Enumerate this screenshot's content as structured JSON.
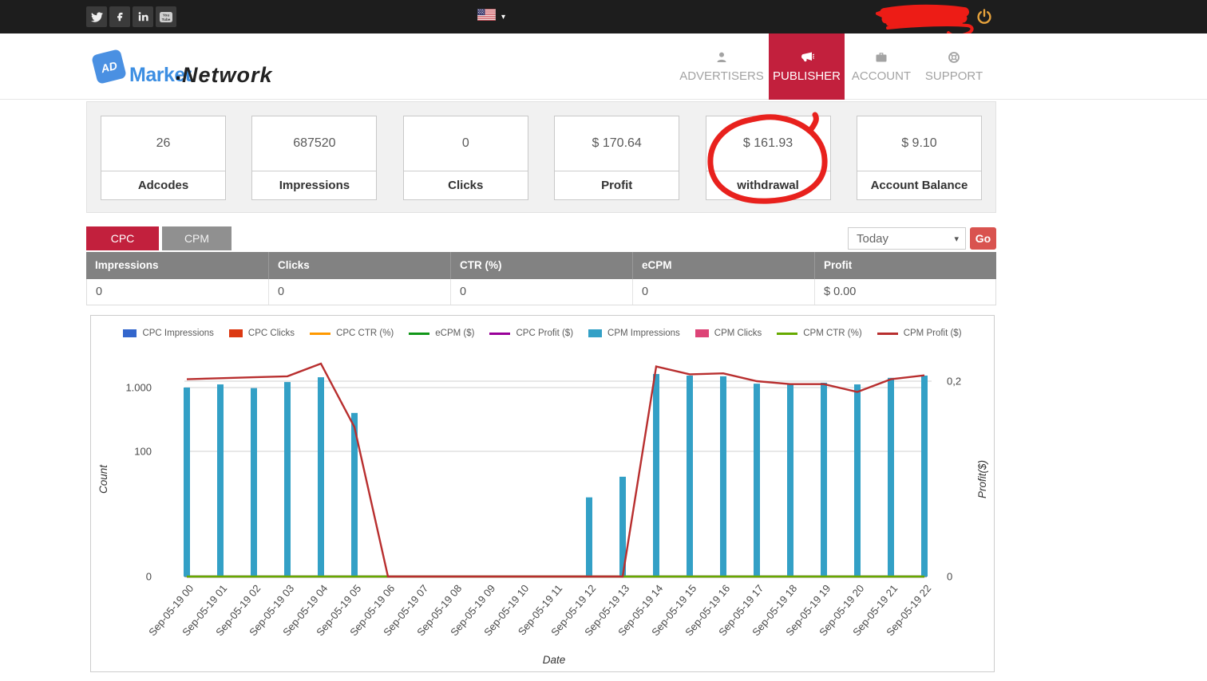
{
  "topbar": {
    "social_icons": [
      "twitter-icon",
      "facebook-icon",
      "linkedin-icon",
      "youtube-icon"
    ],
    "language": {
      "flag_icon": "us-flag-icon"
    },
    "username_redacted": true
  },
  "header": {
    "logo": {
      "badge": "AD",
      "part1": "Market",
      "separator": ".",
      "part2": "Network"
    },
    "nav": [
      {
        "label": "ADVERTISERS",
        "icon": "user-icon",
        "active": false
      },
      {
        "label": "PUBLISHER",
        "icon": "megaphone-icon",
        "active": true
      },
      {
        "label": "ACCOUNT",
        "icon": "briefcase-icon",
        "active": false
      },
      {
        "label": "SUPPORT",
        "icon": "lifering-icon",
        "active": false
      }
    ]
  },
  "stats_cards": [
    {
      "value": "26",
      "label": "Adcodes"
    },
    {
      "value": "687520",
      "label": "Impressions"
    },
    {
      "value": "0",
      "label": "Clicks"
    },
    {
      "value": "$ 170.64",
      "label": "Profit"
    },
    {
      "value": "$ 161.93",
      "label": "withdrawal",
      "annotated": true
    },
    {
      "value": "$ 9.10",
      "label": "Account Balance"
    }
  ],
  "controls": {
    "tabs": [
      {
        "label": "CPC",
        "active": true
      },
      {
        "label": "CPM",
        "active": false
      }
    ],
    "period_select": {
      "value": "Today"
    },
    "go_button": "Go"
  },
  "summary_table": {
    "columns": [
      "Impressions",
      "Clicks",
      "CTR (%)",
      "eCPM",
      "Profit"
    ],
    "rows": [
      [
        "0",
        "0",
        "0",
        "0",
        "$ 0.00"
      ]
    ]
  },
  "annotations": {
    "withdrawal_circle_color": "#e8211d",
    "redaction_color": "#ed1c16"
  },
  "theme": {
    "accent_red": "#c2203d",
    "button_red": "#d9534f",
    "topbar_bg": "#1d1d1d",
    "table_header_bg": "#828282",
    "power_icon_color": "#e6a23c"
  },
  "chart_data": {
    "type": "bar",
    "title": "",
    "xlabel": "Date",
    "ylabel_left": "Count",
    "ylabel_right": "Profit($)",
    "legend_position": "top",
    "grid": true,
    "categories": [
      "Sep-05-19 00",
      "Sep-05-19 01",
      "Sep-05-19 02",
      "Sep-05-19 03",
      "Sep-05-19 04",
      "Sep-05-19 05",
      "Sep-05-19 06",
      "Sep-05-19 07",
      "Sep-05-19 08",
      "Sep-05-19 09",
      "Sep-05-19 10",
      "Sep-05-19 11",
      "Sep-05-19 12",
      "Sep-05-19 13",
      "Sep-05-19 14",
      "Sep-05-19 15",
      "Sep-05-19 16",
      "Sep-05-19 17",
      "Sep-05-19 18",
      "Sep-05-19 19",
      "Sep-05-19 20",
      "Sep-05-19 21",
      "Sep-05-19 22"
    ],
    "y_left_ticks": [
      {
        "label": "1.000",
        "value": 1000
      },
      {
        "label": "100",
        "value": 100
      },
      {
        "label": "0",
        "value": 0
      }
    ],
    "y_right_ticks": [
      {
        "label": "0,2",
        "value": 0.2
      },
      {
        "label": "0",
        "value": 0
      }
    ],
    "series": [
      {
        "name": "CPC Impressions",
        "style": "bar",
        "color": "#3366cc",
        "axis": "count",
        "values": [
          0,
          0,
          0,
          0,
          0,
          0,
          0,
          0,
          0,
          0,
          0,
          0,
          0,
          0,
          0,
          0,
          0,
          0,
          0,
          0,
          0,
          0,
          0
        ]
      },
      {
        "name": "CPC Clicks",
        "style": "bar",
        "color": "#dc3912",
        "axis": "count",
        "values": [
          0,
          0,
          0,
          0,
          0,
          0,
          0,
          0,
          0,
          0,
          0,
          0,
          0,
          0,
          0,
          0,
          0,
          0,
          0,
          0,
          0,
          0,
          0
        ]
      },
      {
        "name": "CPC CTR (%)",
        "style": "line",
        "color": "#ff9900",
        "axis": "count",
        "values": [
          0,
          0,
          0,
          0,
          0,
          0,
          0,
          0,
          0,
          0,
          0,
          0,
          0,
          0,
          0,
          0,
          0,
          0,
          0,
          0,
          0,
          0,
          0
        ]
      },
      {
        "name": "eCPM ($)",
        "style": "line",
        "color": "#109618",
        "axis": "count",
        "values": [
          0,
          0,
          0,
          0,
          0,
          0,
          0,
          0,
          0,
          0,
          0,
          0,
          0,
          0,
          0,
          0,
          0,
          0,
          0,
          0,
          0,
          0,
          0
        ]
      },
      {
        "name": "CPC Profit ($)",
        "style": "line",
        "color": "#990099",
        "axis": "profit",
        "values": [
          0,
          0,
          0,
          0,
          0,
          0,
          0,
          0,
          0,
          0,
          0,
          0,
          0,
          0,
          0,
          0,
          0,
          0,
          0,
          0,
          0,
          0,
          0
        ]
      },
      {
        "name": "CPM Impressions",
        "style": "bar",
        "color": "#33a0c6",
        "axis": "count",
        "values": [
          1000,
          1120,
          980,
          1220,
          1450,
          400,
          0,
          0,
          0,
          0,
          0,
          0,
          19,
          40,
          1630,
          1540,
          1500,
          1150,
          1120,
          1190,
          1120,
          1420,
          1540
        ]
      },
      {
        "name": "CPM Clicks",
        "style": "bar",
        "color": "#dd4477",
        "axis": "count",
        "values": [
          0,
          0,
          0,
          0,
          0,
          0,
          0,
          0,
          0,
          0,
          0,
          0,
          0,
          0,
          0,
          0,
          0,
          0,
          0,
          0,
          0,
          0,
          0
        ]
      },
      {
        "name": "CPM CTR (%)",
        "style": "line",
        "color": "#66aa00",
        "axis": "count",
        "values": [
          0,
          0,
          0,
          0,
          0,
          0,
          0,
          0,
          0,
          0,
          0,
          0,
          0,
          0,
          0,
          0,
          0,
          0,
          0,
          0,
          0,
          0,
          0
        ]
      },
      {
        "name": "CPM Profit ($)",
        "style": "line",
        "color": "#b82e2e",
        "axis": "profit",
        "values": [
          0.202,
          0.203,
          0.204,
          0.205,
          0.218,
          0.153,
          0,
          0,
          0,
          0,
          0,
          0,
          0,
          0,
          0.215,
          0.207,
          0.208,
          0.2,
          0.197,
          0.197,
          0.189,
          0.202,
          0.206
        ]
      }
    ]
  }
}
